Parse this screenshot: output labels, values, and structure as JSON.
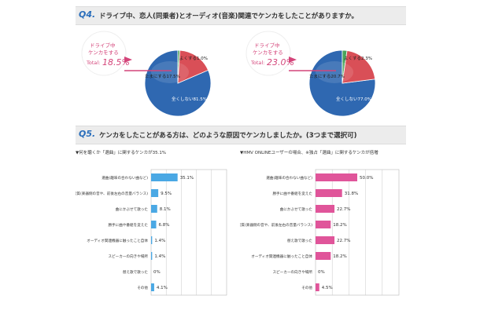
{
  "q4": {
    "num": "Q4.",
    "text": "ドライブ中、恋人(同乗者)とオーディオ(音楽)関連でケンカをしたことがありますか。"
  },
  "q5": {
    "num": "Q5.",
    "text": "ケンカをしたことがある方は、どのような原因でケンカしましたか。(3つまで選択可)"
  },
  "colors": {
    "pie_blue": "#2f68b1",
    "pie_red": "#d94f57",
    "pie_green": "#4aa35b",
    "callout": "#d4457a",
    "bar_blue": "#4aa8e4",
    "bar_pink": "#e0559a"
  },
  "chart_data": [
    {
      "type": "pie",
      "title": "",
      "callout": {
        "line1": "ドライブ中",
        "line2": "ケンカをする",
        "total_label": "Total:",
        "total_value": "18.5%"
      },
      "slices": [
        {
          "label": "全くしない",
          "value": 81.5,
          "text": "81.5%"
        },
        {
          "label": "たまにする",
          "value": 17.5,
          "text": "17.5%"
        },
        {
          "label": "よくする",
          "value": 1.0,
          "text": "1.0%"
        }
      ]
    },
    {
      "type": "pie",
      "title": "",
      "callout": {
        "line1": "ドライブ中",
        "line2": "ケンカをする",
        "total_label": "Total:",
        "total_value": "23.0%"
      },
      "slices": [
        {
          "label": "全くしない",
          "value": 77.0,
          "text": "77.0%"
        },
        {
          "label": "たまにする",
          "value": 20.7,
          "text": "20.7%"
        },
        {
          "label": "よくする",
          "value": 2.3,
          "text": "2.3%"
        }
      ]
    },
    {
      "type": "bar",
      "subtitle": "▼何を聴くか「選曲」に関するケンカが35.1%",
      "categories": [
        "選曲(趣味の合わない曲など)",
        "音量・音質(楽器側の音や、前後左右の音量バランス)",
        "曲にかぶせて歌った",
        "勝手に曲や番組を変えた",
        "オーディオ関連機器に触ったこと自体",
        "スピーカーの向きや場所",
        "替え歌で歌った",
        "その他"
      ],
      "values": [
        35.1,
        9.5,
        8.1,
        6.8,
        1.4,
        1.4,
        0.0,
        4.1
      ],
      "labels": [
        "35.1%",
        "9.5%",
        "8.1%",
        "6.8%",
        "1.4%",
        "1.4%",
        "0%",
        "4.1%"
      ],
      "xlim": [
        0,
        100
      ]
    },
    {
      "type": "bar",
      "subtitle": "▼HMV ONLINEユーザーの場合、※独占「選曲」に関するケンカが倍増",
      "categories": [
        "選曲(趣味の合わない曲など)",
        "勝手に曲や番組を変えた",
        "曲にかぶせて歌った",
        "音量・音質(楽器側の音や、前後左右の音量バランス)",
        "替え歌で歌った",
        "オーディオ関連機器に触ったこと自体",
        "スピーカーの向きや場所",
        "その他"
      ],
      "values": [
        50.0,
        31.8,
        22.7,
        18.2,
        22.7,
        18.2,
        0.0,
        4.5
      ],
      "labels": [
        "50.0%",
        "31.8%",
        "22.7%",
        "18.2%",
        "22.7%",
        "18.2%",
        "0%",
        "4.5%"
      ],
      "xlim": [
        0,
        100
      ]
    }
  ]
}
